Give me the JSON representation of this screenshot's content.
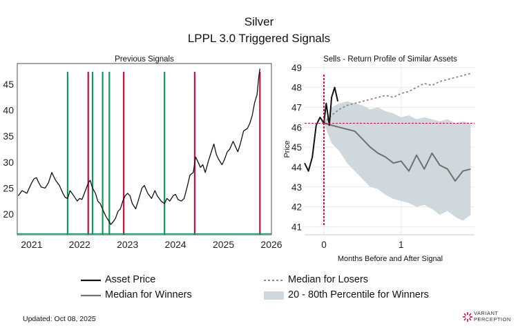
{
  "header": {
    "title_line1": "Silver",
    "title_line2": "LPPL 3.0 Triggered Signals"
  },
  "colors": {
    "asset": "#111111",
    "winners": "#707070",
    "losers": "#8a8a8a",
    "band": "#cfd8dc",
    "buy_signal": "#0e9a5c",
    "sell_signal": "#c8103e",
    "ref_line": "#c8103e"
  },
  "chart_data": [
    {
      "id": "previous-signals",
      "type": "line",
      "title": "Previous Signals",
      "xlabel": "",
      "ylabel": "",
      "xlim": [
        2020.7,
        2026.0
      ],
      "ylim": [
        16,
        49
      ],
      "xticks": [
        2021,
        2022,
        2023,
        2024,
        2025,
        2026
      ],
      "yticks": [
        20,
        25,
        30,
        35,
        40,
        45
      ],
      "grid": false,
      "price_series": {
        "name": "Silver price",
        "points": [
          [
            2020.72,
            23.5
          ],
          [
            2020.8,
            24.5
          ],
          [
            2020.9,
            24.0
          ],
          [
            2021.0,
            26.0
          ],
          [
            2021.05,
            26.8
          ],
          [
            2021.1,
            27.0
          ],
          [
            2021.15,
            26.0
          ],
          [
            2021.2,
            25.2
          ],
          [
            2021.28,
            25.0
          ],
          [
            2021.35,
            26.0
          ],
          [
            2021.42,
            28.0
          ],
          [
            2021.5,
            26.5
          ],
          [
            2021.58,
            25.5
          ],
          [
            2021.65,
            24.0
          ],
          [
            2021.7,
            23.2
          ],
          [
            2021.75,
            23.0
          ],
          [
            2021.8,
            24.5
          ],
          [
            2021.88,
            23.5
          ],
          [
            2021.95,
            22.5
          ],
          [
            2022.0,
            23.0
          ],
          [
            2022.05,
            22.8
          ],
          [
            2022.12,
            24.5
          ],
          [
            2022.18,
            26.0
          ],
          [
            2022.22,
            26.5
          ],
          [
            2022.27,
            25.0
          ],
          [
            2022.33,
            24.0
          ],
          [
            2022.38,
            22.5
          ],
          [
            2022.43,
            22.0
          ],
          [
            2022.5,
            20.5
          ],
          [
            2022.55,
            19.5
          ],
          [
            2022.6,
            18.8
          ],
          [
            2022.65,
            18.0
          ],
          [
            2022.7,
            18.5
          ],
          [
            2022.75,
            19.2
          ],
          [
            2022.8,
            20.5
          ],
          [
            2022.85,
            21.0
          ],
          [
            2022.9,
            22.5
          ],
          [
            2022.95,
            23.5
          ],
          [
            2023.0,
            24.0
          ],
          [
            2023.05,
            23.5
          ],
          [
            2023.1,
            22.0
          ],
          [
            2023.17,
            21.0
          ],
          [
            2023.22,
            22.5
          ],
          [
            2023.3,
            25.0
          ],
          [
            2023.35,
            25.5
          ],
          [
            2023.42,
            24.0
          ],
          [
            2023.5,
            23.0
          ],
          [
            2023.57,
            24.5
          ],
          [
            2023.62,
            23.5
          ],
          [
            2023.7,
            22.5
          ],
          [
            2023.77,
            22.0
          ],
          [
            2023.82,
            23.0
          ],
          [
            2023.88,
            22.5
          ],
          [
            2023.95,
            23.5
          ],
          [
            2024.0,
            23.8
          ],
          [
            2024.05,
            22.8
          ],
          [
            2024.12,
            22.5
          ],
          [
            2024.18,
            23.0
          ],
          [
            2024.25,
            25.5
          ],
          [
            2024.3,
            27.5
          ],
          [
            2024.37,
            28.0
          ],
          [
            2024.42,
            31.0
          ],
          [
            2024.47,
            30.0
          ],
          [
            2024.52,
            29.0
          ],
          [
            2024.57,
            29.5
          ],
          [
            2024.62,
            28.0
          ],
          [
            2024.68,
            30.0
          ],
          [
            2024.73,
            31.5
          ],
          [
            2024.8,
            33.5
          ],
          [
            2024.85,
            31.5
          ],
          [
            2024.9,
            30.5
          ],
          [
            2024.97,
            29.5
          ],
          [
            2025.02,
            30.5
          ],
          [
            2025.08,
            32.0
          ],
          [
            2025.13,
            32.5
          ],
          [
            2025.2,
            34.0
          ],
          [
            2025.25,
            33.0
          ],
          [
            2025.3,
            32.0
          ],
          [
            2025.35,
            33.5
          ],
          [
            2025.42,
            36.0
          ],
          [
            2025.5,
            36.5
          ],
          [
            2025.55,
            37.5
          ],
          [
            2025.6,
            39.0
          ],
          [
            2025.65,
            41.5
          ],
          [
            2025.7,
            43.0
          ],
          [
            2025.73,
            46.0
          ],
          [
            2025.76,
            48.0
          ]
        ]
      },
      "buy_signals": [
        2021.75,
        2022.27,
        2022.48,
        2022.62,
        2023.77
      ],
      "sell_signals": [
        2022.18,
        2022.92,
        2024.4,
        2025.76
      ]
    },
    {
      "id": "return-profile",
      "type": "line",
      "title": "Sells - Return Profile of Similar Assets",
      "xlabel": "Months Before and After Signal",
      "ylabel": "Price",
      "xlim": [
        -0.25,
        1.95
      ],
      "ylim": [
        40.6,
        49.2
      ],
      "xticks": [
        0,
        1
      ],
      "yticks": [
        41,
        42,
        43,
        44,
        45,
        46,
        47,
        48,
        49
      ],
      "grid": true,
      "signal_level": 46.2,
      "signal_x": 0,
      "series": [
        {
          "name": "Asset Price",
          "style": "solid",
          "points": [
            [
              -0.25,
              44.2
            ],
            [
              -0.2,
              43.8
            ],
            [
              -0.15,
              44.5
            ],
            [
              -0.1,
              46.1
            ],
            [
              -0.05,
              46.5
            ],
            [
              0.0,
              46.2
            ],
            [
              0.03,
              47.2
            ],
            [
              0.07,
              46.1
            ],
            [
              0.1,
              47.5
            ],
            [
              0.14,
              48.0
            ],
            [
              0.18,
              47.3
            ]
          ]
        },
        {
          "name": "Median for Winners",
          "style": "solid-grey",
          "points": [
            [
              0.0,
              46.2
            ],
            [
              0.1,
              46.1
            ],
            [
              0.2,
              46.0
            ],
            [
              0.3,
              45.9
            ],
            [
              0.4,
              45.8
            ],
            [
              0.5,
              45.4
            ],
            [
              0.6,
              45.0
            ],
            [
              0.7,
              44.7
            ],
            [
              0.8,
              44.5
            ],
            [
              0.9,
              44.2
            ],
            [
              1.0,
              44.3
            ],
            [
              1.1,
              43.8
            ],
            [
              1.2,
              44.6
            ],
            [
              1.3,
              43.9
            ],
            [
              1.4,
              44.7
            ],
            [
              1.5,
              44.1
            ],
            [
              1.6,
              43.9
            ],
            [
              1.7,
              43.3
            ],
            [
              1.8,
              43.8
            ],
            [
              1.9,
              43.9
            ]
          ]
        },
        {
          "name": "Median for Losers",
          "style": "dashed",
          "points": [
            [
              0.0,
              46.2
            ],
            [
              0.1,
              46.6
            ],
            [
              0.2,
              46.9
            ],
            [
              0.3,
              47.1
            ],
            [
              0.4,
              47.2
            ],
            [
              0.5,
              47.3
            ],
            [
              0.6,
              47.4
            ],
            [
              0.7,
              47.5
            ],
            [
              0.8,
              47.6
            ],
            [
              0.9,
              47.5
            ],
            [
              1.0,
              47.7
            ],
            [
              1.1,
              47.8
            ],
            [
              1.2,
              48.0
            ],
            [
              1.3,
              48.2
            ],
            [
              1.4,
              48.1
            ],
            [
              1.5,
              48.3
            ],
            [
              1.6,
              48.4
            ],
            [
              1.7,
              48.5
            ],
            [
              1.8,
              48.6
            ],
            [
              1.9,
              48.7
            ]
          ]
        }
      ],
      "band": {
        "name": "20 - 80th Percentile for Winners",
        "x": [
          0.0,
          0.1,
          0.2,
          0.3,
          0.4,
          0.5,
          0.6,
          0.7,
          0.8,
          0.9,
          1.0,
          1.1,
          1.2,
          1.3,
          1.4,
          1.5,
          1.6,
          1.7,
          1.8,
          1.9
        ],
        "upper": [
          46.2,
          47.0,
          47.2,
          47.3,
          47.2,
          47.1,
          46.9,
          47.0,
          46.8,
          46.7,
          46.5,
          46.6,
          46.4,
          46.5,
          46.4,
          46.3,
          46.4,
          46.2,
          46.3,
          46.2
        ],
        "lower": [
          46.2,
          45.2,
          44.8,
          44.2,
          43.8,
          43.4,
          43.0,
          42.9,
          42.6,
          42.4,
          42.3,
          42.2,
          42.0,
          42.1,
          41.9,
          41.6,
          41.8,
          41.5,
          41.3,
          41.6
        ]
      }
    }
  ],
  "legend": [
    {
      "label": "Asset Price",
      "style": "solid"
    },
    {
      "label": "Median for Losers",
      "style": "dashed"
    },
    {
      "label": "Median for Winners",
      "style": "solid-grey"
    },
    {
      "label": "20 - 80th Percentile for Winners",
      "style": "band"
    }
  ],
  "footer": {
    "updated": "Updated: Oct 08, 2025",
    "brand_line1": "VARIANT",
    "brand_line2": "PERCEPTION"
  }
}
